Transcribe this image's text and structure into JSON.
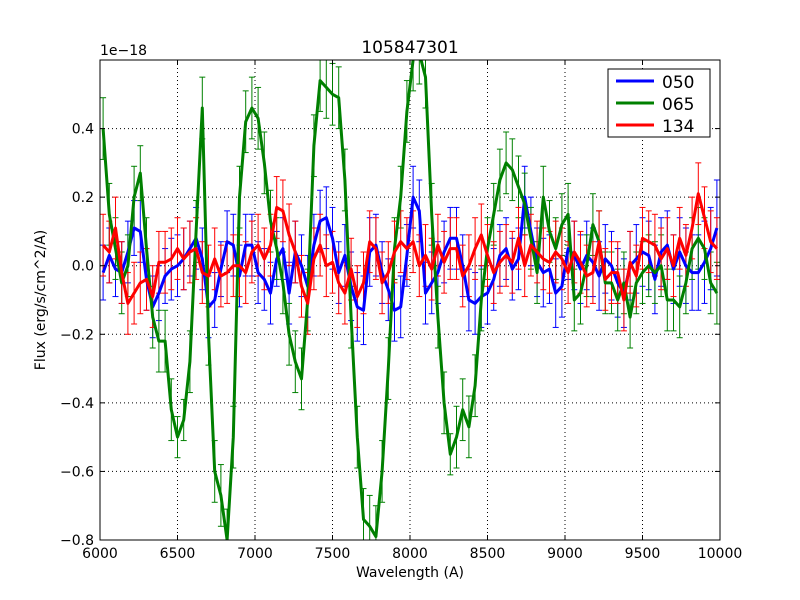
{
  "chart_data": {
    "type": "line",
    "title": "105847301",
    "xlabel": "Wavelength (A)",
    "ylabel": "Flux (erg/s/cm^2/A)",
    "offset_label": "1e−18",
    "xlim": [
      6000,
      10000
    ],
    "ylim": [
      -0.8,
      0.6
    ],
    "xticks": [
      6000,
      6500,
      7000,
      7500,
      8000,
      8500,
      9000,
      9500,
      10000
    ],
    "yticks": [
      -0.8,
      -0.6,
      -0.4,
      -0.2,
      0.0,
      0.2,
      0.4
    ],
    "grid": true,
    "legend_position": "top-right",
    "series": [
      {
        "name": "050",
        "color": "#0000ff",
        "x": [
          6020,
          6060,
          6100,
          6140,
          6180,
          6220,
          6260,
          6300,
          6340,
          6380,
          6420,
          6460,
          6500,
          6540,
          6580,
          6620,
          6660,
          6700,
          6740,
          6780,
          6820,
          6860,
          6900,
          6940,
          6980,
          7020,
          7060,
          7100,
          7140,
          7180,
          7220,
          7260,
          7300,
          7340,
          7380,
          7420,
          7460,
          7500,
          7540,
          7580,
          7620,
          7660,
          7700,
          7740,
          7780,
          7820,
          7860,
          7900,
          7940,
          7980,
          8020,
          8060,
          8100,
          8140,
          8180,
          8220,
          8260,
          8300,
          8340,
          8380,
          8420,
          8460,
          8500,
          8540,
          8580,
          8620,
          8660,
          8700,
          8740,
          8780,
          8820,
          8860,
          8900,
          8940,
          8980,
          9020,
          9060,
          9100,
          9140,
          9180,
          9220,
          9260,
          9300,
          9340,
          9380,
          9420,
          9460,
          9500,
          9540,
          9580,
          9620,
          9660,
          9700,
          9740,
          9780,
          9820,
          9860,
          9900,
          9940,
          9980
        ],
        "y": [
          -0.02,
          0.03,
          -0.01,
          -0.02,
          0.04,
          0.11,
          0.1,
          -0.04,
          -0.12,
          -0.08,
          -0.03,
          -0.01,
          0.0,
          0.02,
          0.05,
          0.08,
          0.02,
          -0.12,
          -0.1,
          -0.01,
          0.07,
          0.06,
          -0.03,
          0.06,
          0.06,
          -0.02,
          -0.04,
          -0.08,
          0.02,
          0.05,
          -0.08,
          0.04,
          0.0,
          -0.06,
          0.06,
          0.13,
          0.14,
          0.08,
          -0.02,
          0.03,
          -0.06,
          -0.12,
          -0.13,
          0.04,
          0.06,
          -0.02,
          -0.07,
          -0.13,
          -0.12,
          0.03,
          0.2,
          0.16,
          -0.08,
          -0.05,
          -0.02,
          0.04,
          0.08,
          0.08,
          0.0,
          -0.1,
          -0.11,
          -0.09,
          -0.08,
          -0.04,
          0.03,
          0.05,
          -0.01,
          0.02,
          0.2,
          0.1,
          0.01,
          -0.02,
          -0.01,
          -0.08,
          -0.06,
          0.05,
          0.03,
          -0.01,
          0.03,
          0.01,
          -0.03,
          0.02,
          0.0,
          -0.05,
          -0.08,
          0.0,
          0.02,
          0.04,
          0.03,
          -0.04,
          0.04,
          0.06,
          -0.01,
          0.04,
          0.0,
          -0.02,
          -0.02,
          0.01,
          0.05,
          0.11
        ],
        "err": [
          0.08,
          0.08,
          0.08,
          0.09,
          0.09,
          0.08,
          0.09,
          0.09,
          0.09,
          0.08,
          0.08,
          0.09,
          0.09,
          0.09,
          0.08,
          0.09,
          0.09,
          0.09,
          0.08,
          0.08,
          0.09,
          0.09,
          0.09,
          0.09,
          0.09,
          0.09,
          0.09,
          0.09,
          0.08,
          0.09,
          0.09,
          0.09,
          0.09,
          0.09,
          0.09,
          0.09,
          0.09,
          0.09,
          0.09,
          0.09,
          0.1,
          0.1,
          0.1,
          0.1,
          0.09,
          0.09,
          0.09,
          0.09,
          0.09,
          0.09,
          0.09,
          0.09,
          0.09,
          0.09,
          0.09,
          0.09,
          0.09,
          0.09,
          0.09,
          0.09,
          0.09,
          0.09,
          0.09,
          0.09,
          0.09,
          0.09,
          0.09,
          0.09,
          0.09,
          0.1,
          0.1,
          0.1,
          0.1,
          0.1,
          0.09,
          0.09,
          0.1,
          0.1,
          0.1,
          0.1,
          0.1,
          0.1,
          0.1,
          0.1,
          0.1,
          0.1,
          0.1,
          0.1,
          0.1,
          0.1,
          0.1,
          0.1,
          0.1,
          0.1,
          0.11,
          0.11,
          0.11,
          0.12,
          0.12,
          0.14
        ]
      },
      {
        "name": "065",
        "color": "#008000",
        "x": [
          6020,
          6060,
          6100,
          6140,
          6180,
          6220,
          6260,
          6300,
          6340,
          6380,
          6420,
          6460,
          6500,
          6540,
          6580,
          6620,
          6660,
          6700,
          6740,
          6780,
          6820,
          6860,
          6900,
          6940,
          6980,
          7020,
          7060,
          7100,
          7140,
          7180,
          7220,
          7260,
          7300,
          7340,
          7380,
          7420,
          7460,
          7500,
          7540,
          7580,
          7620,
          7660,
          7700,
          7740,
          7780,
          7820,
          7860,
          7900,
          7940,
          7980,
          8020,
          8060,
          8100,
          8140,
          8180,
          8220,
          8260,
          8300,
          8340,
          8380,
          8420,
          8460,
          8500,
          8540,
          8580,
          8620,
          8660,
          8700,
          8740,
          8780,
          8820,
          8860,
          8900,
          8940,
          8980,
          9020,
          9060,
          9100,
          9140,
          9180,
          9220,
          9260,
          9300,
          9340,
          9380,
          9420,
          9460,
          9500,
          9540,
          9580,
          9620,
          9660,
          9700,
          9740,
          9780,
          9820,
          9860,
          9900,
          9940,
          9980
        ],
        "y": [
          0.4,
          0.15,
          0.05,
          -0.05,
          0.0,
          0.2,
          0.27,
          0.05,
          -0.15,
          -0.22,
          -0.22,
          -0.42,
          -0.5,
          -0.45,
          -0.28,
          0.1,
          0.46,
          -0.2,
          -0.6,
          -0.67,
          -0.8,
          -0.5,
          0.2,
          0.42,
          0.46,
          0.43,
          0.3,
          0.13,
          0.05,
          -0.05,
          -0.2,
          -0.28,
          -0.33,
          -0.1,
          0.35,
          0.54,
          0.52,
          0.5,
          0.49,
          0.25,
          -0.15,
          -0.5,
          -0.74,
          -0.76,
          -0.79,
          -0.6,
          -0.3,
          0.05,
          0.2,
          0.45,
          0.6,
          0.62,
          0.55,
          0.15,
          -0.15,
          -0.4,
          -0.55,
          -0.5,
          -0.42,
          -0.47,
          -0.35,
          -0.1,
          0.05,
          0.15,
          0.25,
          0.3,
          0.28,
          0.23,
          0.18,
          0.08,
          -0.02,
          0.2,
          0.1,
          0.05,
          0.12,
          0.15,
          -0.1,
          -0.08,
          0.0,
          0.12,
          0.07,
          -0.05,
          -0.05,
          -0.1,
          -0.05,
          -0.15,
          -0.05,
          -0.02,
          0.0,
          -0.02,
          0.0,
          -0.1,
          -0.1,
          -0.12,
          -0.05,
          0.05,
          0.08,
          0.05,
          -0.05,
          -0.08
        ],
        "err": [
          0.09,
          0.09,
          0.09,
          0.09,
          0.09,
          0.09,
          0.08,
          0.09,
          0.09,
          0.09,
          0.09,
          0.09,
          0.06,
          0.06,
          0.09,
          0.09,
          0.09,
          0.09,
          0.09,
          0.09,
          0.09,
          0.09,
          0.09,
          0.09,
          0.09,
          0.09,
          0.09,
          0.09,
          0.09,
          0.09,
          0.09,
          0.09,
          0.09,
          0.09,
          0.09,
          0.09,
          0.09,
          0.09,
          0.09,
          0.09,
          0.09,
          0.09,
          0.09,
          0.09,
          0.09,
          0.09,
          0.09,
          0.09,
          0.09,
          0.09,
          0.09,
          0.09,
          0.09,
          0.09,
          0.09,
          0.09,
          0.06,
          0.09,
          0.09,
          0.09,
          0.09,
          0.09,
          0.09,
          0.09,
          0.09,
          0.09,
          0.09,
          0.09,
          0.09,
          0.09,
          0.09,
          0.09,
          0.09,
          0.09,
          0.09,
          0.09,
          0.09,
          0.09,
          0.09,
          0.09,
          0.09,
          0.09,
          0.09,
          0.09,
          0.09,
          0.09,
          0.09,
          0.09,
          0.09,
          0.09,
          0.09,
          0.09,
          0.09,
          0.09,
          0.09,
          0.09,
          0.09,
          0.09,
          0.09,
          0.09
        ]
      },
      {
        "name": "134",
        "color": "#ff0000",
        "x": [
          6020,
          6060,
          6100,
          6140,
          6180,
          6220,
          6260,
          6300,
          6340,
          6380,
          6420,
          6460,
          6500,
          6540,
          6580,
          6620,
          6660,
          6700,
          6740,
          6780,
          6820,
          6860,
          6900,
          6940,
          6980,
          7020,
          7060,
          7100,
          7140,
          7180,
          7220,
          7260,
          7300,
          7340,
          7380,
          7420,
          7460,
          7500,
          7540,
          7580,
          7620,
          7660,
          7700,
          7740,
          7780,
          7820,
          7860,
          7900,
          7940,
          7980,
          8020,
          8060,
          8100,
          8140,
          8180,
          8220,
          8260,
          8300,
          8340,
          8380,
          8420,
          8460,
          8500,
          8540,
          8580,
          8620,
          8660,
          8700,
          8740,
          8780,
          8820,
          8860,
          8900,
          8940,
          8980,
          9020,
          9060,
          9100,
          9140,
          9180,
          9220,
          9260,
          9300,
          9340,
          9380,
          9420,
          9460,
          9500,
          9540,
          9580,
          9620,
          9660,
          9700,
          9740,
          9780,
          9820,
          9860,
          9900,
          9940,
          9980
        ],
        "y": [
          0.06,
          0.04,
          0.11,
          -0.02,
          -0.11,
          -0.08,
          -0.05,
          -0.04,
          -0.09,
          0.01,
          0.01,
          0.02,
          0.05,
          0.02,
          0.04,
          0.05,
          -0.02,
          -0.03,
          0.02,
          -0.03,
          -0.02,
          0.0,
          0.0,
          -0.02,
          0.04,
          0.06,
          0.02,
          0.06,
          0.17,
          0.16,
          0.09,
          0.04,
          -0.06,
          -0.11,
          0.02,
          0.06,
          0.0,
          0.01,
          -0.05,
          -0.08,
          -0.01,
          -0.09,
          -0.05,
          0.07,
          0.05,
          -0.05,
          -0.02,
          0.04,
          0.07,
          0.05,
          0.07,
          0.0,
          0.03,
          -0.01,
          0.06,
          0.01,
          0.05,
          0.05,
          -0.03,
          0.0,
          0.05,
          0.09,
          0.03,
          -0.02,
          0.01,
          0.03,
          0.01,
          0.08,
          0.0,
          0.06,
          0.04,
          0.02,
          0.01,
          0.04,
          0.02,
          -0.02,
          0.04,
          0.01,
          -0.03,
          -0.02,
          0.07,
          -0.04,
          -0.02,
          -0.02,
          -0.1,
          0.01,
          -0.03,
          0.08,
          0.07,
          0.06,
          0.02,
          0.05,
          0.0,
          0.08,
          0.03,
          0.11,
          0.21,
          0.14,
          0.07,
          0.05
        ],
        "err": [
          0.09,
          0.09,
          0.09,
          0.09,
          0.09,
          0.09,
          0.09,
          0.09,
          0.09,
          0.09,
          0.09,
          0.09,
          0.09,
          0.09,
          0.09,
          0.09,
          0.09,
          0.09,
          0.09,
          0.09,
          0.09,
          0.09,
          0.09,
          0.09,
          0.09,
          0.09,
          0.09,
          0.09,
          0.09,
          0.09,
          0.09,
          0.09,
          0.09,
          0.09,
          0.09,
          0.09,
          0.09,
          0.09,
          0.09,
          0.09,
          0.09,
          0.09,
          0.09,
          0.09,
          0.09,
          0.09,
          0.09,
          0.09,
          0.09,
          0.09,
          0.09,
          0.09,
          0.09,
          0.09,
          0.09,
          0.09,
          0.09,
          0.09,
          0.09,
          0.09,
          0.09,
          0.09,
          0.09,
          0.09,
          0.09,
          0.09,
          0.09,
          0.09,
          0.09,
          0.09,
          0.09,
          0.09,
          0.09,
          0.09,
          0.09,
          0.09,
          0.09,
          0.09,
          0.09,
          0.09,
          0.09,
          0.09,
          0.09,
          0.09,
          0.09,
          0.09,
          0.09,
          0.09,
          0.09,
          0.09,
          0.09,
          0.09,
          0.09,
          0.09,
          0.09,
          0.09,
          0.09,
          0.09,
          0.09,
          0.09
        ]
      }
    ]
  }
}
